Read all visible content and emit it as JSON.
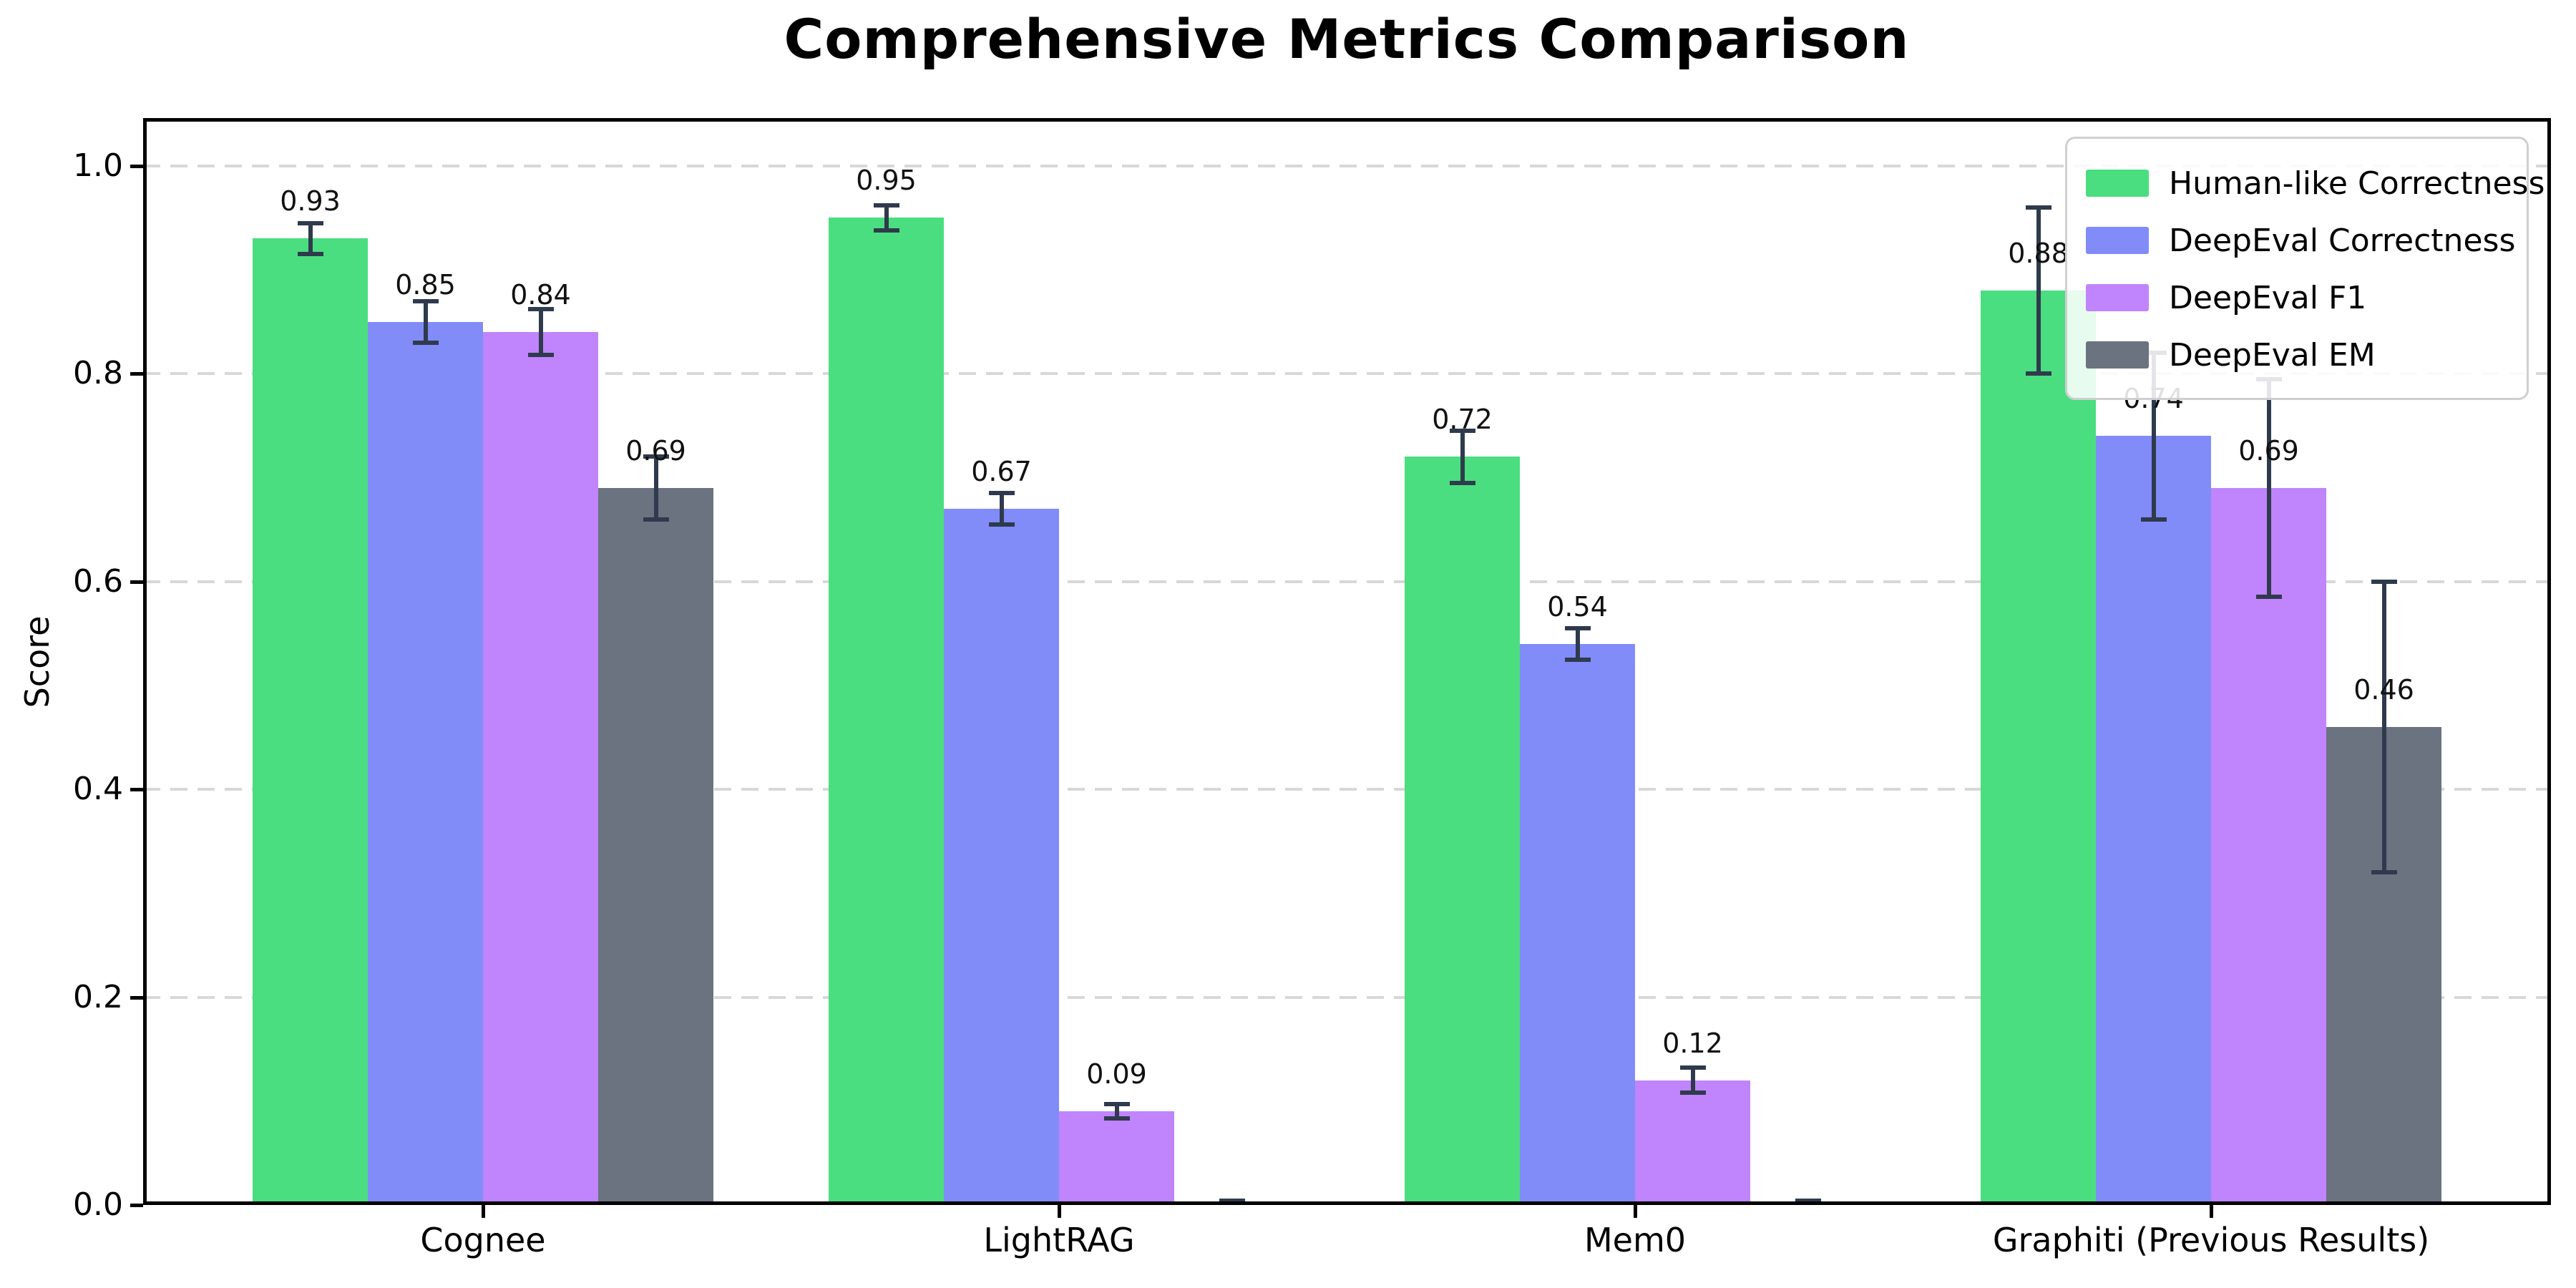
{
  "chart_data": {
    "type": "bar",
    "title": "Comprehensive Metrics Comparison",
    "xlabel": "",
    "ylabel": "Score",
    "ylim": [
      0,
      1.05
    ],
    "grid": {
      "axis": "y",
      "style": "dashed",
      "color": "#d8d8d8"
    },
    "legend": {
      "position": "upper-right",
      "entries": [
        "Human-like Correctness",
        "DeepEval Correctness",
        "DeepEval F1",
        "DeepEval EM"
      ]
    },
    "categories": [
      "Cognee",
      "LightRAG",
      "Mem0",
      "Graphiti (Previous Results)"
    ],
    "yticks": [
      {
        "value": 0.0,
        "label": "0.0"
      },
      {
        "value": 0.2,
        "label": "0.2"
      },
      {
        "value": 0.4,
        "label": "0.4"
      },
      {
        "value": 0.6,
        "label": "0.6"
      },
      {
        "value": 0.8,
        "label": "0.8"
      },
      {
        "value": 1.0,
        "label": "1.0"
      }
    ],
    "series": [
      {
        "name": "Human-like Correctness",
        "color": "#4ade80",
        "values": [
          0.93,
          0.95,
          0.72,
          0.88
        ],
        "errors": [
          0.015,
          0.012,
          0.025,
          0.08
        ],
        "value_labels": [
          "0.93",
          "0.95",
          "0.72",
          "0.88"
        ]
      },
      {
        "name": "DeepEval Correctness",
        "color": "#818cf8",
        "values": [
          0.85,
          0.67,
          0.54,
          0.74
        ],
        "errors": [
          0.02,
          0.015,
          0.015,
          0.08
        ],
        "value_labels": [
          "0.85",
          "0.67",
          "0.54",
          "0.74"
        ]
      },
      {
        "name": "DeepEval F1",
        "color": "#c084fc",
        "values": [
          0.84,
          0.09,
          0.12,
          0.69
        ],
        "errors": [
          0.022,
          0.007,
          0.012,
          0.105
        ],
        "value_labels": [
          "0.84",
          "0.09",
          "0.12",
          "0.69"
        ]
      },
      {
        "name": "DeepEval EM",
        "color": "#6b7280",
        "values": [
          0.69,
          0.0,
          0.0,
          0.46
        ],
        "errors": [
          0.03,
          0.004,
          0.004,
          0.14
        ],
        "value_labels": [
          "0.69",
          "",
          "",
          "0.46"
        ]
      }
    ],
    "error_bar_color": "#2f3a4c",
    "spine_color": "#000000"
  }
}
